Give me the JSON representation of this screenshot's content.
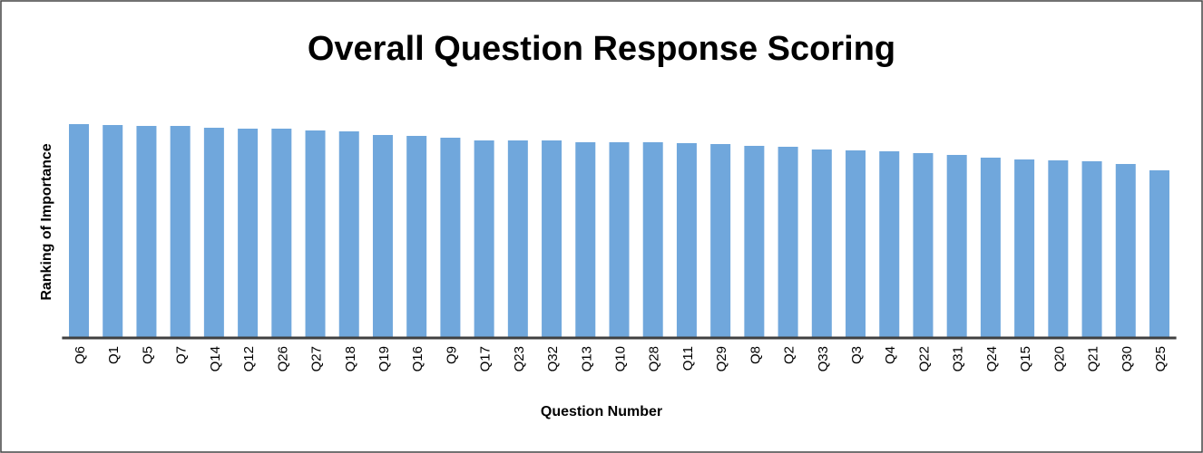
{
  "chart_data": {
    "type": "bar",
    "title": "Overall Question Response Scoring",
    "x_label": "Question Number",
    "y_label": "Ranking of Importance",
    "categories": [
      "Q6",
      "Q1",
      "Q5",
      "Q7",
      "Q14",
      "Q12",
      "Q26",
      "Q27",
      "Q18",
      "Q19",
      "Q16",
      "Q9",
      "Q17",
      "Q23",
      "Q32",
      "Q13",
      "Q10",
      "Q28",
      "Q11",
      "Q29",
      "Q8",
      "Q2",
      "Q33",
      "Q3",
      "Q4",
      "Q22",
      "Q31",
      "Q24",
      "Q15",
      "Q20",
      "Q21",
      "Q30",
      "Q25"
    ],
    "values": [
      236,
      235,
      234,
      234,
      232,
      231,
      231,
      229,
      228,
      224,
      223,
      221,
      218,
      218,
      218,
      216,
      216,
      216,
      215,
      214,
      212,
      211,
      208,
      207,
      206,
      204,
      202,
      199,
      197,
      196,
      195,
      192,
      185
    ],
    "color": "#70a7dc",
    "ylim": [
      0,
      250
    ],
    "grid": false
  }
}
